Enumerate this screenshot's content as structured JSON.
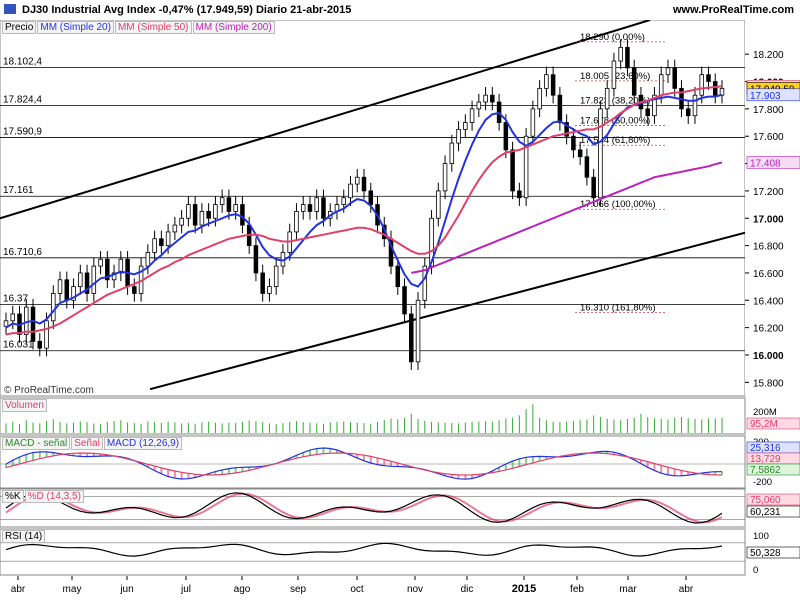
{
  "header": {
    "title": "DJ30 Industrial Avg Index   -0,47% (17.949,59)   Diario   21-abr-2015",
    "brand": "www.ProRealTime.com",
    "watermark": "© ProRealTime.com"
  },
  "price_legend": {
    "price": "Precio",
    "sma20": "MM (Simple 20)",
    "sma50": "MM (Simple 50)",
    "sma200": "MM (Simple 200)"
  },
  "panels": {
    "volume": "Volumen",
    "macd_a": "MACD - señal",
    "macd_b": "Señal",
    "macd_c": "MACD (12,26,9)",
    "stoch_a": "%K",
    "stoch_b": "%D (14,3,5)",
    "rsi": "RSI (14)"
  },
  "chart_data": {
    "type": "candlestick",
    "y_axis_ticks": [
      "18.200",
      "18.000",
      "17.800",
      "17.600",
      "17.400",
      "17.200",
      "17.000",
      "16.800",
      "16.600",
      "16.400",
      "16.200",
      "16.000",
      "15.800"
    ],
    "ylim": [
      15700,
      18450
    ],
    "x_labels": [
      "abr",
      "may",
      "jun",
      "jul",
      "ago",
      "sep",
      "oct",
      "nov",
      "dic",
      "2015",
      "feb",
      "mar",
      "abr"
    ],
    "horizontal_levels": [
      {
        "label": "18.102,4",
        "value": 18102.4
      },
      {
        "label": "17.824,4",
        "value": 17824.4
      },
      {
        "label": "17.590,9",
        "value": 17590.9
      },
      {
        "label": "17.161",
        "value": 17161
      },
      {
        "label": "16.710,6",
        "value": 16710.6
      },
      {
        "label": "16.37",
        "value": 16370
      },
      {
        "label": "16.031",
        "value": 16031
      }
    ],
    "fibonacci": [
      {
        "label": "18.290 (0,00%)",
        "value": 18290
      },
      {
        "label": "18.005 (23,60%)",
        "value": 18005
      },
      {
        "label": "17.823 (38,20%)",
        "value": 17823
      },
      {
        "label": "17.678 (50,00%)",
        "value": 17678
      },
      {
        "label": "17.534 (61,80%)",
        "value": 17534
      },
      {
        "label": "17.066 (100,00%)",
        "value": 17066
      },
      {
        "label": "16.310 (161,80%)",
        "value": 16310
      }
    ],
    "last_values": [
      {
        "label": "17.965",
        "value": 17965,
        "color": "#e0406a",
        "bg": "#ffd9e4"
      },
      {
        "label": "17.949,59",
        "value": 17949.59,
        "color": "#000000",
        "bg": "#ffd21a"
      },
      {
        "label": "17.903",
        "value": 17903,
        "color": "#2233dd",
        "bg": "#dde3ff"
      },
      {
        "label": "17.408",
        "value": 17408,
        "color": "#bb22bb",
        "bg": "#f5dcf5"
      }
    ],
    "channel": [
      {
        "from": [
          0,
          17000
        ],
        "to": [
          650,
          18450
        ]
      },
      {
        "from": [
          150,
          15750
        ],
        "to": [
          800,
          17000
        ]
      }
    ],
    "series": [
      {
        "name": "Precio",
        "color": "#000000",
        "values": [
          16250,
          16300,
          16150,
          16350,
          16100,
          16050,
          16250,
          16450,
          16550,
          16400,
          16500,
          16600,
          16450,
          16650,
          16700,
          16550,
          16600,
          16700,
          16500,
          16450,
          16650,
          16750,
          16850,
          16800,
          16900,
          16950,
          17000,
          17100,
          16950,
          17050,
          17000,
          17100,
          17150,
          17050,
          17100,
          16950,
          16800,
          16600,
          16450,
          16500,
          16650,
          16750,
          16900,
          17050,
          17100,
          17050,
          17150,
          17000,
          17050,
          17100,
          17150,
          17250,
          17300,
          17200,
          17100,
          16950,
          16850,
          16650,
          16500,
          16300,
          15950,
          16400,
          16650,
          17000,
          17200,
          17400,
          17550,
          17650,
          17700,
          17800,
          17850,
          17900,
          17850,
          17700,
          17500,
          17200,
          17150,
          17600,
          17800,
          17950,
          18050,
          17900,
          17700,
          17600,
          17500,
          17450,
          17300,
          17150,
          17800,
          17950,
          18150,
          18250,
          18100,
          17900,
          17800,
          17750,
          17900,
          18050,
          18100,
          17950,
          17800,
          17750,
          17900,
          18050,
          18000,
          17900,
          17950
        ]
      },
      {
        "name": "MM (Simple 20)",
        "color": "#2233dd",
        "values": [
          16200,
          16230,
          16220,
          16240,
          16250,
          16230,
          16260,
          16320,
          16380,
          16400,
          16420,
          16450,
          16480,
          16520,
          16560,
          16570,
          16590,
          16610,
          16600,
          16590,
          16610,
          16640,
          16690,
          16730,
          16780,
          16820,
          16860,
          16900,
          16910,
          16940,
          16960,
          16980,
          17000,
          17020,
          17030,
          17010,
          16960,
          16880,
          16790,
          16730,
          16700,
          16690,
          16720,
          16780,
          16840,
          16900,
          16950,
          16980,
          17020,
          17050,
          17070,
          17110,
          17140,
          17130,
          17090,
          17020,
          16920,
          16800,
          16690,
          16590,
          16520,
          16500,
          16560,
          16680,
          16820,
          16980,
          17140,
          17290,
          17420,
          17540,
          17640,
          17720,
          17760,
          17770,
          17720,
          17630,
          17560,
          17530,
          17560,
          17610,
          17660,
          17700,
          17710,
          17680,
          17650,
          17620,
          17600,
          17540,
          17560,
          17610,
          17690,
          17760,
          17810,
          17830,
          17840,
          17860,
          17870,
          17880,
          17890,
          17880,
          17870,
          17860,
          17860,
          17880,
          17890,
          17890,
          17903
        ]
      },
      {
        "name": "MM (Simple 50)",
        "color": "#e0406a",
        "values": [
          16150,
          16160,
          16160,
          16170,
          16170,
          16180,
          16190,
          16210,
          16230,
          16260,
          16290,
          16320,
          16350,
          16380,
          16410,
          16440,
          16460,
          16480,
          16500,
          16520,
          16540,
          16570,
          16600,
          16630,
          16650,
          16680,
          16700,
          16730,
          16750,
          16770,
          16790,
          16810,
          16830,
          16850,
          16860,
          16870,
          16880,
          16880,
          16870,
          16850,
          16840,
          16830,
          16830,
          16840,
          16850,
          16860,
          16870,
          16880,
          16890,
          16900,
          16910,
          16920,
          16930,
          16930,
          16920,
          16900,
          16880,
          16850,
          16820,
          16790,
          16760,
          16740,
          16740,
          16760,
          16800,
          16860,
          16940,
          17020,
          17110,
          17200,
          17280,
          17350,
          17410,
          17450,
          17480,
          17490,
          17500,
          17520,
          17540,
          17560,
          17580,
          17600,
          17610,
          17620,
          17630,
          17640,
          17650,
          17650,
          17670,
          17700,
          17730,
          17770,
          17800,
          17830,
          17850,
          17860,
          17880,
          17900,
          17910,
          17920,
          17920,
          17930,
          17940,
          17950,
          17955,
          17960,
          17965
        ]
      },
      {
        "name": "MM (Simple 200)",
        "color": "#bb22bb",
        "values": [
          null,
          null,
          null,
          null,
          null,
          null,
          null,
          null,
          null,
          null,
          null,
          null,
          null,
          null,
          null,
          null,
          null,
          null,
          null,
          null,
          null,
          null,
          null,
          null,
          null,
          null,
          null,
          null,
          null,
          null,
          null,
          null,
          null,
          null,
          null,
          null,
          null,
          null,
          null,
          null,
          null,
          null,
          null,
          null,
          null,
          null,
          null,
          null,
          null,
          null,
          null,
          null,
          null,
          null,
          null,
          null,
          null,
          null,
          null,
          null,
          16600,
          16610,
          16620,
          16640,
          16660,
          16680,
          16700,
          16720,
          16740,
          16760,
          16780,
          16800,
          16820,
          16840,
          16860,
          16880,
          16900,
          16920,
          16940,
          16960,
          16980,
          17000,
          17020,
          17040,
          17060,
          17080,
          17100,
          17120,
          17140,
          17160,
          17180,
          17200,
          17220,
          17240,
          17260,
          17280,
          17300,
          17310,
          17320,
          17330,
          17340,
          17350,
          17360,
          17370,
          17380,
          17395,
          17408
        ]
      }
    ],
    "volume": {
      "axis": [
        "200M"
      ],
      "last_label": "95,2M",
      "values": [
        60,
        70,
        55,
        80,
        65,
        60,
        75,
        85,
        70,
        60,
        65,
        72,
        68,
        60,
        55,
        70,
        75,
        80,
        66,
        62,
        58,
        72,
        68,
        64,
        70,
        66,
        60,
        62,
        58,
        66,
        70,
        64,
        60,
        65,
        62,
        70,
        78,
        74,
        68,
        60,
        55,
        62,
        70,
        74,
        68,
        64,
        60,
        58,
        66,
        70,
        72,
        68,
        64,
        62,
        58,
        70,
        82,
        90,
        86,
        95,
        120,
        88,
        76,
        70,
        66,
        64,
        62,
        60,
        66,
        70,
        72,
        74,
        70,
        80,
        90,
        95,
        110,
        150,
        180,
        96,
        80,
        70,
        68,
        72,
        76,
        80,
        84,
        110,
        100,
        90,
        84,
        80,
        88,
        96,
        120,
        100,
        92,
        88,
        84,
        96,
        100,
        92,
        88,
        84,
        90,
        92,
        95
      ]
    },
    "macd": {
      "axis": [
        "200",
        "0",
        "-200"
      ],
      "last_labels": [
        "25,316",
        "13,729",
        "7,5862"
      ]
    },
    "stochastic": {
      "axis": [
        "80"
      ],
      "last_labels": [
        "75,060",
        "60,231"
      ]
    },
    "rsi": {
      "axis": [
        "100",
        "0"
      ],
      "last_label": "50,328"
    }
  }
}
